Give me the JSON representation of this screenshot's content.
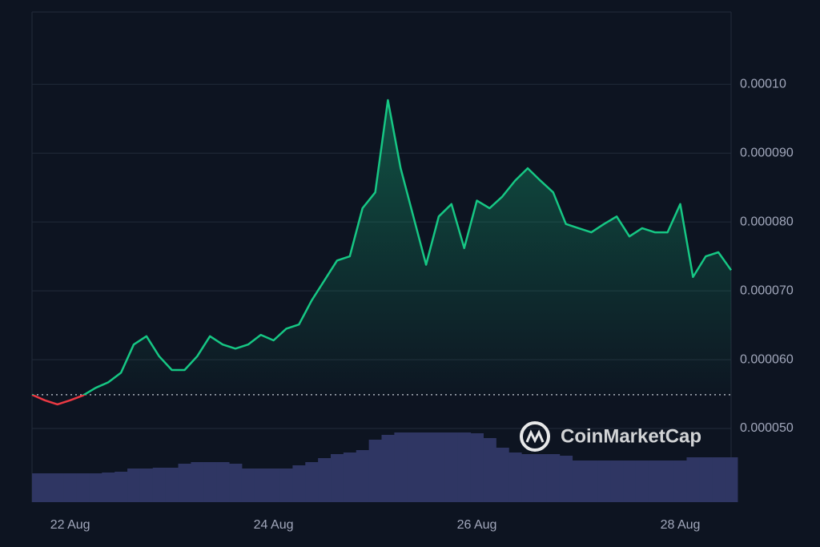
{
  "chart_data": {
    "type": "line",
    "watermark": "CoinMarketCap",
    "categories": [
      null,
      null,
      null,
      "22 Aug",
      null,
      null,
      null,
      null,
      null,
      null,
      null,
      null,
      null,
      null,
      null,
      null,
      null,
      null,
      null,
      "24 Aug",
      null,
      null,
      null,
      null,
      null,
      null,
      null,
      null,
      null,
      null,
      null,
      null,
      null,
      null,
      null,
      "26 Aug",
      null,
      null,
      null,
      null,
      null,
      null,
      null,
      null,
      null,
      null,
      null,
      null,
      null,
      null,
      null,
      "28 Aug",
      null,
      null,
      null,
      null
    ],
    "series": [
      {
        "color": "#16c784",
        "below_color": "#ea3943",
        "values": [
          5.49e-05,
          5.41e-05,
          5.35e-05,
          5.41e-05,
          5.48e-05,
          5.59e-05,
          5.67e-05,
          5.81e-05,
          6.22e-05,
          6.34e-05,
          6.05e-05,
          5.85e-05,
          5.85e-05,
          6.05e-05,
          6.34e-05,
          6.22e-05,
          6.16e-05,
          6.22e-05,
          6.36e-05,
          6.28e-05,
          6.45e-05,
          6.51e-05,
          6.86e-05,
          7.15e-05,
          7.44e-05,
          7.5e-05,
          8.2e-05,
          8.43e-05,
          9.77e-05,
          8.78e-05,
          8.08e-05,
          7.38e-05,
          8.08e-05,
          8.26e-05,
          7.62e-05,
          8.31e-05,
          8.2e-05,
          8.37e-05,
          8.6e-05,
          8.78e-05,
          8.6e-05,
          8.43e-05,
          7.97e-05,
          7.91e-05,
          7.85e-05,
          7.97e-05,
          8.08e-05,
          7.79e-05,
          7.91e-05,
          7.85e-05,
          7.85e-05,
          8.26e-05,
          7.2e-05,
          7.5e-05,
          7.56e-05,
          7.3e-05
        ]
      }
    ],
    "baseline": 5.49e-05,
    "volume": {
      "color": "#2f3663",
      "lim": [
        0,
        100
      ],
      "values": [
        36,
        36,
        36,
        36,
        36,
        36,
        37,
        38,
        42,
        42,
        43,
        43,
        48,
        50,
        50,
        50,
        48,
        42,
        42,
        42,
        42,
        46,
        50,
        55,
        60,
        62,
        65,
        78,
        84,
        87,
        87,
        87,
        87,
        87,
        87,
        86,
        80,
        68,
        62,
        60,
        60,
        60,
        58,
        52,
        52,
        52,
        52,
        52,
        52,
        52,
        52,
        52,
        56,
        56,
        56,
        56
      ]
    },
    "ylim": [
      3.93e-05,
      0.0001105
    ],
    "yticks": [
      {
        "value": 5e-05,
        "label": "0.000050"
      },
      {
        "value": 6e-05,
        "label": "0.000060"
      },
      {
        "value": 7e-05,
        "label": "0.000070"
      },
      {
        "value": 8e-05,
        "label": "0.000080"
      },
      {
        "value": 9e-05,
        "label": "0.000090"
      },
      {
        "value": 0.0001,
        "label": "0.00010"
      }
    ],
    "grid": true
  }
}
